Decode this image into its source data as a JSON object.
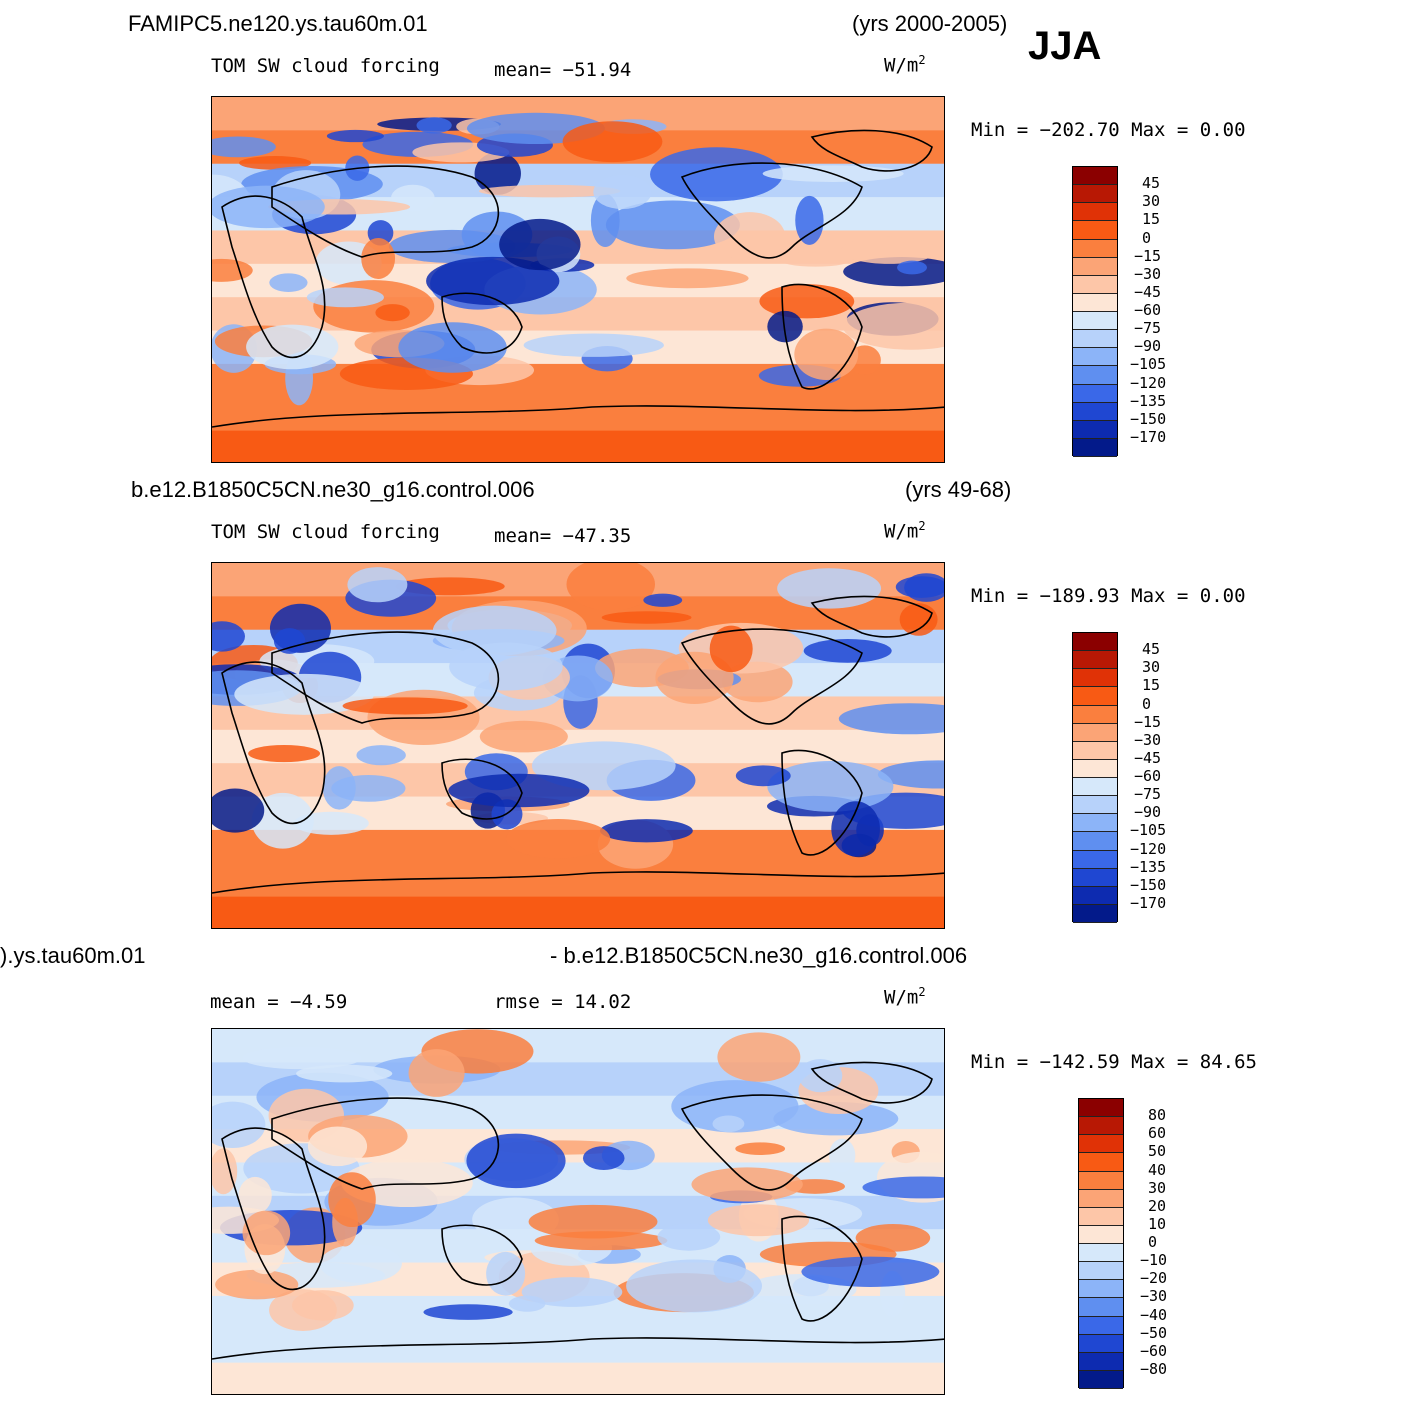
{
  "season": "JJA",
  "units_label": "W/m",
  "units_sup": "2",
  "panels": [
    {
      "case": "FAMIPC5.ne120.ys.tau60m.01",
      "years": "(yrs 2000-2005)",
      "variable": "TOM SW cloud forcing",
      "stat1": "mean=  −51.94",
      "stat2": "",
      "minmax": "Min  =  −202.70  Max  =     0.00",
      "colorbar": {
        "colors": [
          "#8b0000",
          "#b81804",
          "#e03206",
          "#f85a14",
          "#fa7f3e",
          "#fba476",
          "#fdc6a8",
          "#fde6d6",
          "#d6e8fa",
          "#b7d2fa",
          "#8cb4f8",
          "#5f8ff0",
          "#3a68e8",
          "#1f47d2",
          "#0d2bb0",
          "#031a8a"
        ],
        "labels": [
          "45",
          "30",
          "15",
          "0",
          "−15",
          "−30",
          "−45",
          "−60",
          "−75",
          "−90",
          "−105",
          "−120",
          "−135",
          "−150",
          "−170"
        ]
      }
    },
    {
      "case": "b.e12.B1850C5CN.ne30_g16.control.006",
      "years": "(yrs 49-68)",
      "variable": "TOM SW cloud forcing",
      "stat1": "mean=  −47.35",
      "stat2": "",
      "minmax": "Min  =  −189.93  Max  =     0.00",
      "colorbar": {
        "colors": [
          "#8b0000",
          "#b81804",
          "#e03206",
          "#f85a14",
          "#fa7f3e",
          "#fba476",
          "#fdc6a8",
          "#fde6d6",
          "#d6e8fa",
          "#b7d2fa",
          "#8cb4f8",
          "#5f8ff0",
          "#3a68e8",
          "#1f47d2",
          "#0d2bb0",
          "#031a8a"
        ],
        "labels": [
          "45",
          "30",
          "15",
          "0",
          "−15",
          "−30",
          "−45",
          "−60",
          "−75",
          "−90",
          "−105",
          "−120",
          "−135",
          "−150",
          "−170"
        ]
      }
    },
    {
      "case": ").ys.tau60m.01",
      "years": "- b.e12.B1850C5CN.ne30_g16.control.006",
      "variable": "",
      "stat1": "mean  =   −4.59",
      "stat2": "rmse  =   14.02",
      "minmax": "Min  =  −142.59  Max  =    84.65",
      "colorbar": {
        "colors": [
          "#8b0000",
          "#b81804",
          "#e03206",
          "#f85a14",
          "#fa7f3e",
          "#fba476",
          "#fdc6a8",
          "#fde6d6",
          "#d6e8fa",
          "#b7d2fa",
          "#8cb4f8",
          "#5f8ff0",
          "#3a68e8",
          "#1f47d2",
          "#0d2bb0",
          "#031a8a"
        ],
        "labels": [
          "80",
          "60",
          "50",
          "40",
          "30",
          "20",
          "10",
          "0",
          "−10",
          "−20",
          "−30",
          "−40",
          "−50",
          "−60",
          "−80"
        ]
      }
    }
  ]
}
